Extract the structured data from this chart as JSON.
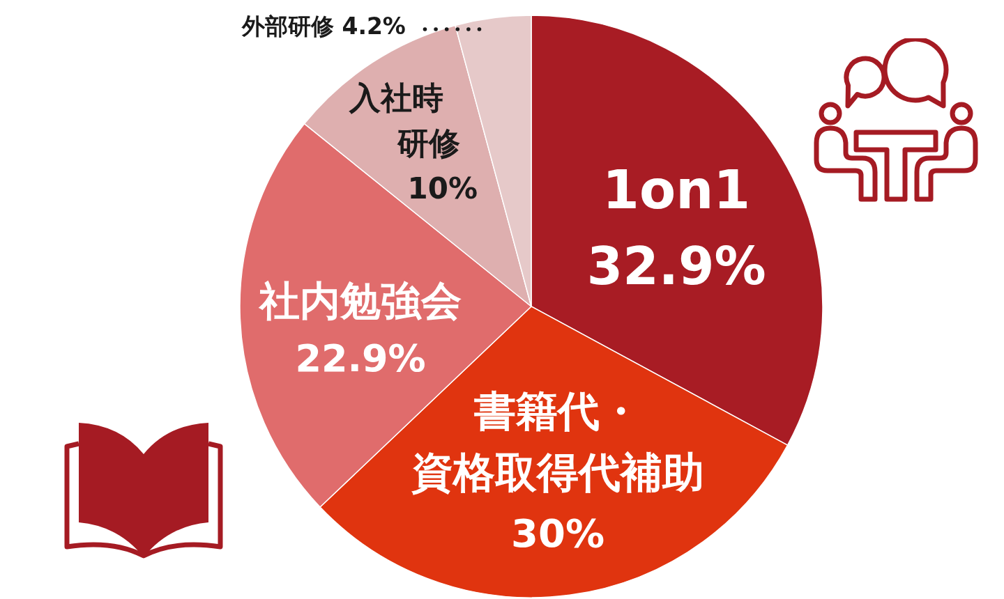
{
  "chart_data": {
    "type": "pie",
    "categories": [
      "1on1",
      "書籍代・資格取得代補助",
      "社内勉強会",
      "入社時研修",
      "外部研修"
    ],
    "values": [
      32.9,
      30,
      22.9,
      10,
      4.2
    ],
    "colors": [
      "#a81c24",
      "#e0340f",
      "#e06c6c",
      "#deafaf",
      "#e6c9c9"
    ],
    "value_labels": [
      "32.9%",
      "30%",
      "22.9%",
      "10%",
      "4.2%"
    ]
  }
}
